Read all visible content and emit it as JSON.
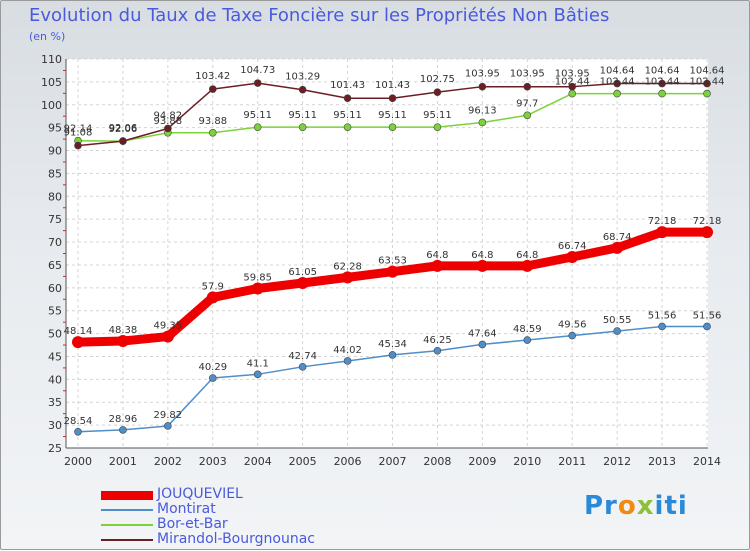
{
  "page": {
    "title": "Evolution du Taux de Taxe Foncière sur les Propriétés Non Bâties",
    "unit": "(en %)"
  },
  "logo": {
    "prefix": "Pr",
    "o": "o",
    "x": "x",
    "suffix": "iti"
  },
  "chart_data": {
    "type": "line",
    "title": "Evolution du Taux de Taxe Foncière sur les Propriétés Non Bâties",
    "ylabel": "(en %)",
    "xlabel": "",
    "ylim": [
      25,
      110
    ],
    "yticks": [
      25,
      30,
      35,
      40,
      45,
      50,
      55,
      60,
      65,
      70,
      75,
      80,
      85,
      90,
      95,
      100,
      105,
      110
    ],
    "x": [
      "2000",
      "2001",
      "2002",
      "2003",
      "2004",
      "2005",
      "2006",
      "2007",
      "2008",
      "2009",
      "2010",
      "2011",
      "2012",
      "2013",
      "2014"
    ],
    "grid": true,
    "legend": "bottom-left",
    "series": [
      {
        "name": "JOUQUEVIEL",
        "color": "#ee0000",
        "values": [
          48.14,
          48.38,
          49.35,
          57.9,
          59.85,
          61.05,
          62.28,
          63.53,
          64.8,
          64.8,
          64.8,
          66.74,
          68.74,
          72.18,
          72.18
        ],
        "labels": [
          "48.14",
          "48.38",
          "49.35",
          "57.9",
          "59.85",
          "61.05",
          "62.28",
          "63.53",
          "64.8",
          "64.8",
          "64.8",
          "66.74",
          "68.74",
          "72.18",
          "72.18"
        ]
      },
      {
        "name": "Montirat",
        "color": "#4f8ec9",
        "values": [
          28.54,
          28.96,
          29.82,
          40.29,
          41.1,
          42.74,
          44.02,
          45.34,
          46.25,
          47.64,
          48.59,
          49.56,
          50.55,
          51.56,
          51.56
        ],
        "labels": [
          "28.54",
          "28.96",
          "29.82",
          "40.29",
          "41.1",
          "42.74",
          "44.02",
          "45.34",
          "46.25",
          "47.64",
          "48.59",
          "49.56",
          "50.55",
          "51.56",
          "51.56"
        ]
      },
      {
        "name": "Bor-et-Bar",
        "color": "#7cd23a",
        "values": [
          92.14,
          92.06,
          93.88,
          93.88,
          95.11,
          95.11,
          95.11,
          95.11,
          95.11,
          96.13,
          97.7,
          102.44,
          102.44,
          102.44,
          102.44
        ],
        "labels": [
          "92.14",
          "92.06",
          "93.88",
          "93.88",
          "95.11",
          "95.11",
          "95.11",
          "95.11",
          "95.11",
          "96.13",
          "97.7",
          "102.44",
          "102.44",
          "102.44",
          "102.44"
        ]
      },
      {
        "name": "Mirandol-Bourgnounac",
        "color": "#6b1f24",
        "values": [
          91.08,
          92.06,
          94.82,
          103.42,
          104.73,
          103.29,
          101.43,
          101.43,
          102.75,
          103.95,
          103.95,
          103.95,
          104.64,
          104.64,
          104.64
        ],
        "labels": [
          "91.08",
          "92.06",
          "94.82",
          "103.42",
          "104.73",
          "103.29",
          "101.43",
          "101.43",
          "102.75",
          "103.95",
          "103.95",
          "103.95",
          "104.64",
          "104.64",
          "104.64"
        ]
      }
    ]
  }
}
